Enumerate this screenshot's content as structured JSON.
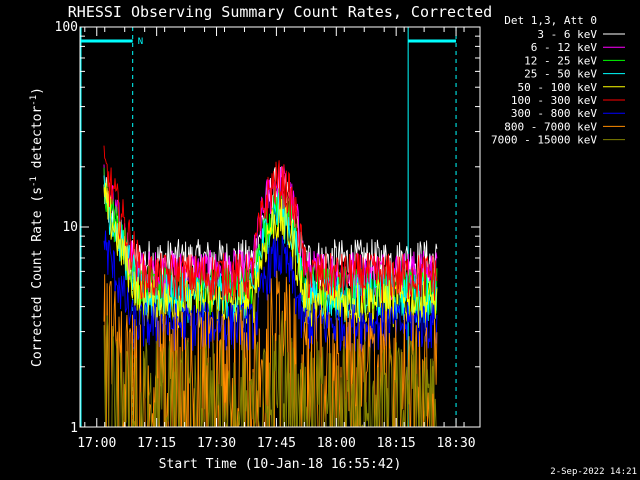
{
  "chart_data": {
    "type": "line",
    "title": "RHESSI Observing Summary Count Rates, Corrected",
    "xlabel": "Start Time (10-Jan-18 16:55:42)",
    "ylabel": "Corrected Count Rate (s",
    "ylabel_sup1": "-1",
    "ylabel_mid": " detector",
    "ylabel_sup2": "-1",
    "ylabel_end": ")",
    "yscale": "log",
    "ylim": [
      1,
      100
    ],
    "xlim_minutes": [
      16.93,
      18.6
    ],
    "x_ticks": [
      {
        "label": "17:00",
        "t": 17.0
      },
      {
        "label": "17:15",
        "t": 17.25
      },
      {
        "label": "17:30",
        "t": 17.5
      },
      {
        "label": "17:45",
        "t": 17.75
      },
      {
        "label": "18:00",
        "t": 18.0
      },
      {
        "label": "18:15",
        "t": 18.25
      },
      {
        "label": "18:30",
        "t": 18.5
      }
    ],
    "y_ticks": [
      {
        "label": "1",
        "v": 1
      },
      {
        "label": "10",
        "v": 10
      },
      {
        "label": "100",
        "v": 100
      }
    ],
    "legend_header": "Det 1,3, Att 0",
    "legend_position": "right",
    "data_start_hour": 17.03,
    "data_end_hour": 18.42,
    "night_marker_label": "N",
    "night_intervals_hours": [
      [
        16.93,
        17.15
      ],
      [
        18.3,
        18.5
      ]
    ],
    "series": [
      {
        "name": "3 - 6 keV",
        "color": "#ffffff",
        "peak1": 15,
        "peak2": 16,
        "base": 6.8
      },
      {
        "name": "6 - 12 keV",
        "color": "#ff00ff",
        "peak1": 17,
        "peak2": 17,
        "base": 6.0
      },
      {
        "name": "12 - 25 keV",
        "color": "#00ff00",
        "peak1": 16,
        "peak2": 13,
        "base": 5.0
      },
      {
        "name": "25 - 50 keV",
        "color": "#00ffff",
        "peak1": 15,
        "peak2": 12,
        "base": 4.6
      },
      {
        "name": "50 - 100 keV",
        "color": "#ffff00",
        "peak1": 14,
        "peak2": 11,
        "base": 4.3
      },
      {
        "name": "100 - 300 keV",
        "color": "#ff0000",
        "peak1": 20,
        "peak2": 17,
        "base": 5.8
      },
      {
        "name": "300 - 800 keV",
        "color": "#0000ff",
        "peak1": 8.5,
        "peak2": 7.2,
        "base": 3.3
      },
      {
        "name": "800 - 7000 keV",
        "color": "#ff8c00",
        "peak1": 4.5,
        "peak2": 4.0,
        "base": 2.5
      },
      {
        "name": "7000 - 15000 keV",
        "color": "#808000",
        "peak1": 3.0,
        "peak2": 2.5,
        "base": 1.8
      }
    ]
  },
  "footer": {
    "date_stamp": "2-Sep-2022 14:21"
  }
}
